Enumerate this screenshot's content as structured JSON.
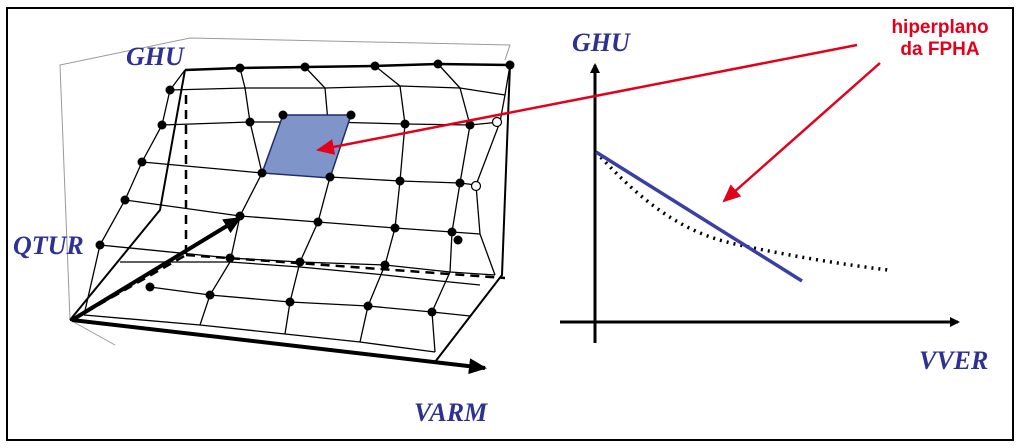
{
  "labels": {
    "ghu_3d": "GHU",
    "qtur": "QTUR",
    "varm": "VARM",
    "ghu_2d": "GHU",
    "vver": "VVER"
  },
  "annotation": {
    "line1": "hiperplano",
    "line2": "da FPHA"
  },
  "colors": {
    "label": "#2e3192",
    "annotation": "#e3001b",
    "hyperplane_line": "#3a3fa8",
    "highlighted_cell": "#7f95c9",
    "grid": "#000000"
  }
}
